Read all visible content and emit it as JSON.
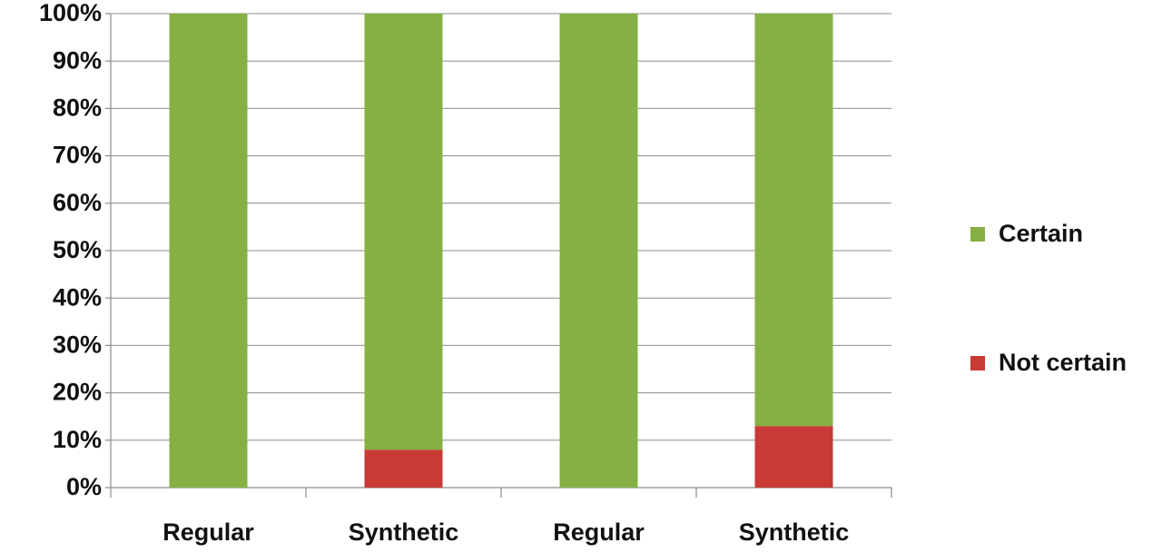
{
  "chart_data": {
    "type": "stacked_bar_100",
    "categories": [
      "Regular",
      "Synthetic",
      "Regular",
      "Synthetic"
    ],
    "series": [
      {
        "name": "Not certain",
        "color": "#c83a36",
        "values": [
          0,
          8,
          0,
          13
        ]
      },
      {
        "name": "Certain",
        "color": "#86b043",
        "values": [
          100,
          92,
          100,
          87
        ]
      }
    ],
    "ylim": [
      0,
      100
    ],
    "yticks": [
      {
        "value": 0,
        "label": "0%"
      },
      {
        "value": 10,
        "label": "10%"
      },
      {
        "value": 20,
        "label": "20%"
      },
      {
        "value": 30,
        "label": "30%"
      },
      {
        "value": 40,
        "label": "40%"
      },
      {
        "value": 50,
        "label": "50%"
      },
      {
        "value": 60,
        "label": "60%"
      },
      {
        "value": 70,
        "label": "70%"
      },
      {
        "value": 80,
        "label": "80%"
      },
      {
        "value": 90,
        "label": "90%"
      },
      {
        "value": 100,
        "label": "100%"
      }
    ],
    "grid": true,
    "legend": "right"
  }
}
